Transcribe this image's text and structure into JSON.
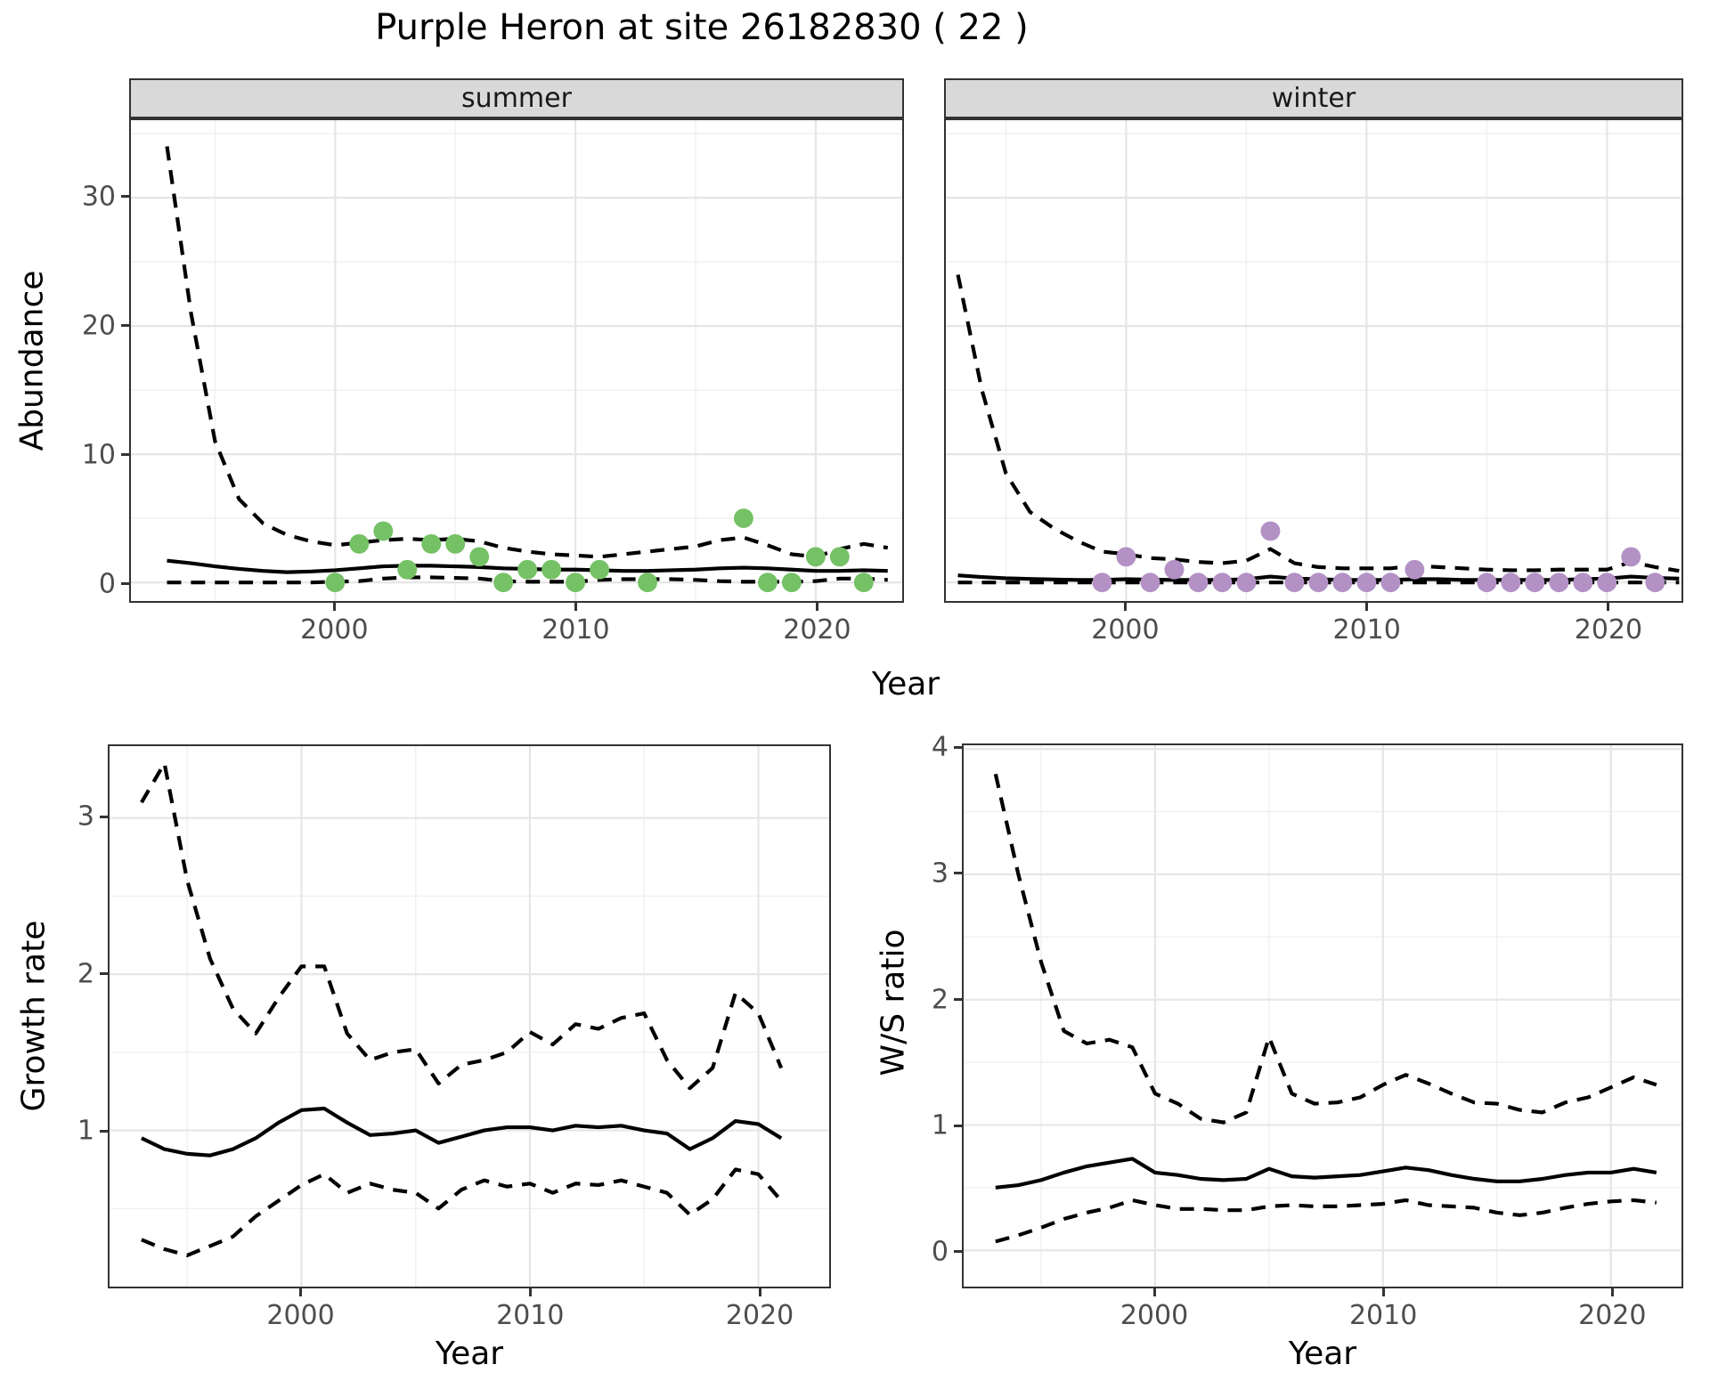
{
  "figure": {
    "title": "Purple Heron at site 26182830 ( 22 )"
  },
  "colors": {
    "summer_point": "#75c165",
    "winter_point": "#b391c5",
    "line": "#000000",
    "strip_bg": "#d9d9d9",
    "grid_major": "#e6e6e6",
    "grid_minor": "#f0f0f0",
    "tick_text": "#4d4d4d"
  },
  "axes": {
    "x_label": "Year",
    "abundance_label": "Abundance",
    "growth_label": "Growth rate",
    "ws_label": "W/S ratio"
  },
  "facets": {
    "summer": "summer",
    "winter": "winter"
  },
  "chart_data": [
    {
      "key": "abundance_summer",
      "type": "line",
      "facet": "summer",
      "ylabel": "Abundance",
      "xlabel": "Year",
      "xlim": [
        1991.5,
        2023.6
      ],
      "ylim": [
        -1.45,
        36.05
      ],
      "xticks": [
        2000,
        2010,
        2020
      ],
      "yticks": [
        0,
        10,
        20,
        30
      ],
      "x_minor": [
        1995,
        2005,
        2015
      ],
      "y_minor": [
        5,
        15,
        25,
        35
      ],
      "show_y_axis": true,
      "grid": true,
      "x": [
        1993,
        1994,
        1995,
        1996,
        1997,
        1998,
        1999,
        2000,
        2001,
        2002,
        2003,
        2004,
        2005,
        2006,
        2007,
        2008,
        2009,
        2010,
        2011,
        2012,
        2013,
        2014,
        2015,
        2016,
        2017,
        2018,
        2019,
        2020,
        2021,
        2022,
        2023
      ],
      "series": [
        {
          "name": "mean",
          "style": "solid",
          "values": [
            1.7,
            1.5,
            1.25,
            1.05,
            0.9,
            0.8,
            0.85,
            0.95,
            1.1,
            1.25,
            1.3,
            1.3,
            1.25,
            1.2,
            1.1,
            1.05,
            1.0,
            1.0,
            0.95,
            0.9,
            0.9,
            0.95,
            1.0,
            1.1,
            1.15,
            1.1,
            1.0,
            0.9,
            0.9,
            0.95,
            0.9
          ]
        },
        {
          "name": "upper_ci",
          "style": "dashed",
          "values": [
            34,
            21,
            11,
            6.5,
            4.6,
            3.7,
            3.2,
            2.9,
            3.1,
            3.3,
            3.4,
            3.3,
            3.4,
            3.2,
            2.7,
            2.4,
            2.2,
            2.1,
            2.0,
            2.2,
            2.4,
            2.6,
            2.8,
            3.3,
            3.5,
            2.9,
            2.2,
            2.0,
            2.6,
            3.0,
            2.7
          ]
        },
        {
          "name": "lower_ci",
          "style": "dashed",
          "values": [
            0,
            0,
            0,
            0,
            0,
            0,
            0,
            0.05,
            0.1,
            0.3,
            0.4,
            0.4,
            0.35,
            0.3,
            0.1,
            0.05,
            0.05,
            0.05,
            0.2,
            0.25,
            0.25,
            0.25,
            0.2,
            0.1,
            0.05,
            0.05,
            0.05,
            0.1,
            0.3,
            0.3,
            0.2
          ]
        }
      ],
      "points": {
        "color_key": "summer_point",
        "x": [
          2000,
          2001,
          2002,
          2003,
          2004,
          2005,
          2006,
          2007,
          2008,
          2009,
          2010,
          2011,
          2013,
          2017,
          2018,
          2019,
          2020,
          2021,
          2022
        ],
        "y": [
          0,
          3,
          4,
          1,
          3,
          3,
          2,
          0,
          1,
          1,
          0,
          1,
          0,
          5,
          0,
          0,
          2,
          2,
          0
        ]
      }
    },
    {
      "key": "abundance_winter",
      "type": "line",
      "facet": "winter",
      "ylabel": "Abundance",
      "xlabel": "Year",
      "xlim": [
        1992.5,
        2023.1
      ],
      "ylim": [
        -1.45,
        36.05
      ],
      "xticks": [
        2000,
        2010,
        2020
      ],
      "yticks": [
        0,
        10,
        20,
        30
      ],
      "x_minor": [
        1995,
        2005,
        2015
      ],
      "y_minor": [
        5,
        15,
        25,
        35
      ],
      "show_y_axis": false,
      "grid": true,
      "x": [
        1993,
        1994,
        1995,
        1996,
        1997,
        1998,
        1999,
        2000,
        2001,
        2002,
        2003,
        2004,
        2005,
        2006,
        2007,
        2008,
        2009,
        2010,
        2011,
        2012,
        2013,
        2014,
        2015,
        2016,
        2017,
        2018,
        2019,
        2020,
        2021,
        2022,
        2023
      ],
      "series": [
        {
          "name": "mean",
          "style": "solid",
          "values": [
            0.55,
            0.42,
            0.32,
            0.27,
            0.23,
            0.2,
            0.2,
            0.25,
            0.22,
            0.2,
            0.2,
            0.2,
            0.25,
            0.45,
            0.3,
            0.25,
            0.2,
            0.2,
            0.2,
            0.25,
            0.25,
            0.2,
            0.2,
            0.2,
            0.2,
            0.2,
            0.25,
            0.3,
            0.45,
            0.35,
            0.3
          ]
        },
        {
          "name": "upper_ci",
          "style": "dashed",
          "values": [
            24,
            15,
            8.5,
            5.5,
            4.2,
            3.2,
            2.4,
            2.2,
            1.9,
            1.8,
            1.6,
            1.5,
            1.7,
            2.6,
            1.5,
            1.2,
            1.1,
            1.1,
            1.1,
            1.3,
            1.2,
            1.1,
            1.0,
            0.95,
            0.95,
            1.0,
            1.0,
            1.0,
            1.6,
            1.2,
            0.9
          ]
        },
        {
          "name": "lower_ci",
          "style": "dashed",
          "values": [
            0,
            0,
            0,
            0,
            0,
            0,
            0,
            0,
            0,
            0,
            0,
            0,
            0,
            0,
            0,
            0,
            0,
            0,
            0,
            0,
            0,
            0,
            0,
            0,
            0,
            0,
            0,
            0,
            0,
            0,
            0
          ]
        }
      ],
      "points": {
        "color_key": "winter_point",
        "x": [
          1999,
          2000,
          2001,
          2002,
          2003,
          2004,
          2005,
          2006,
          2007,
          2008,
          2009,
          2010,
          2011,
          2012,
          2015,
          2016,
          2017,
          2018,
          2019,
          2020,
          2021,
          2022
        ],
        "y": [
          0,
          2,
          0,
          1,
          0,
          0,
          0,
          4,
          0,
          0,
          0,
          0,
          0,
          1,
          0,
          0,
          0,
          0,
          0,
          0,
          2,
          0
        ]
      }
    },
    {
      "key": "growth_rate",
      "type": "line",
      "facet": null,
      "ylabel": "Growth rate",
      "xlabel": "Year",
      "xlim": [
        1991.6,
        2023.1
      ],
      "ylim": [
        0.0,
        3.46
      ],
      "xticks": [
        2000,
        2010,
        2020
      ],
      "yticks": [
        1,
        2,
        3
      ],
      "x_minor": [
        1995,
        2005,
        2015
      ],
      "y_minor": [
        0.5,
        1.5,
        2.5
      ],
      "show_y_axis": true,
      "grid": true,
      "x": [
        1993,
        1994,
        1995,
        1996,
        1997,
        1998,
        1999,
        2000,
        2001,
        2002,
        2003,
        2004,
        2005,
        2006,
        2007,
        2008,
        2009,
        2010,
        2011,
        2012,
        2013,
        2014,
        2015,
        2016,
        2017,
        2018,
        2019,
        2020,
        2021
      ],
      "series": [
        {
          "name": "mean",
          "style": "solid",
          "values": [
            0.95,
            0.88,
            0.85,
            0.84,
            0.88,
            0.95,
            1.05,
            1.13,
            1.14,
            1.05,
            0.97,
            0.98,
            1.0,
            0.92,
            0.96,
            1.0,
            1.02,
            1.02,
            1.0,
            1.03,
            1.02,
            1.03,
            1.0,
            0.98,
            0.88,
            0.95,
            1.06,
            1.04,
            0.95
          ]
        },
        {
          "name": "upper_ci",
          "style": "dashed",
          "values": [
            3.1,
            3.35,
            2.6,
            2.1,
            1.78,
            1.62,
            1.85,
            2.05,
            2.05,
            1.62,
            1.45,
            1.5,
            1.52,
            1.3,
            1.42,
            1.45,
            1.5,
            1.63,
            1.55,
            1.68,
            1.65,
            1.72,
            1.75,
            1.45,
            1.27,
            1.4,
            1.88,
            1.75,
            1.4
          ]
        },
        {
          "name": "lower_ci",
          "style": "dashed",
          "values": [
            0.3,
            0.24,
            0.2,
            0.26,
            0.32,
            0.45,
            0.55,
            0.65,
            0.72,
            0.6,
            0.66,
            0.62,
            0.6,
            0.5,
            0.62,
            0.68,
            0.64,
            0.66,
            0.6,
            0.66,
            0.65,
            0.68,
            0.64,
            0.6,
            0.46,
            0.56,
            0.75,
            0.72,
            0.55
          ]
        }
      ],
      "points": null
    },
    {
      "key": "ws_ratio",
      "type": "line",
      "facet": null,
      "ylabel": "W/S ratio",
      "xlabel": "Year",
      "xlim": [
        1991.6,
        2023.1
      ],
      "ylim": [
        -0.29,
        4.03
      ],
      "xticks": [
        2000,
        2010,
        2020
      ],
      "yticks": [
        0,
        1,
        2,
        3,
        4
      ],
      "x_minor": [
        1995,
        2005,
        2015
      ],
      "y_minor": [
        0.5,
        1.5,
        2.5,
        3.5
      ],
      "show_y_axis": true,
      "grid": true,
      "x": [
        1993,
        1994,
        1995,
        1996,
        1997,
        1998,
        1999,
        2000,
        2001,
        2002,
        2003,
        2004,
        2005,
        2006,
        2007,
        2008,
        2009,
        2010,
        2011,
        2012,
        2013,
        2014,
        2015,
        2016,
        2017,
        2018,
        2019,
        2020,
        2021,
        2022
      ],
      "series": [
        {
          "name": "mean",
          "style": "solid",
          "values": [
            0.5,
            0.52,
            0.56,
            0.62,
            0.67,
            0.7,
            0.73,
            0.62,
            0.6,
            0.57,
            0.56,
            0.57,
            0.65,
            0.59,
            0.58,
            0.59,
            0.6,
            0.63,
            0.66,
            0.64,
            0.6,
            0.57,
            0.55,
            0.55,
            0.57,
            0.6,
            0.62,
            0.62,
            0.65,
            0.62
          ]
        },
        {
          "name": "upper_ci",
          "style": "dashed",
          "values": [
            3.8,
            3.0,
            2.3,
            1.75,
            1.65,
            1.68,
            1.62,
            1.25,
            1.17,
            1.05,
            1.02,
            1.1,
            1.7,
            1.25,
            1.17,
            1.18,
            1.22,
            1.32,
            1.4,
            1.33,
            1.25,
            1.18,
            1.17,
            1.12,
            1.1,
            1.18,
            1.22,
            1.3,
            1.38,
            1.32
          ]
        },
        {
          "name": "lower_ci",
          "style": "dashed",
          "values": [
            0.07,
            0.12,
            0.18,
            0.25,
            0.3,
            0.34,
            0.4,
            0.36,
            0.33,
            0.33,
            0.32,
            0.32,
            0.35,
            0.36,
            0.35,
            0.35,
            0.36,
            0.37,
            0.4,
            0.36,
            0.35,
            0.34,
            0.3,
            0.28,
            0.3,
            0.34,
            0.37,
            0.39,
            0.4,
            0.38
          ]
        }
      ],
      "points": null
    }
  ]
}
